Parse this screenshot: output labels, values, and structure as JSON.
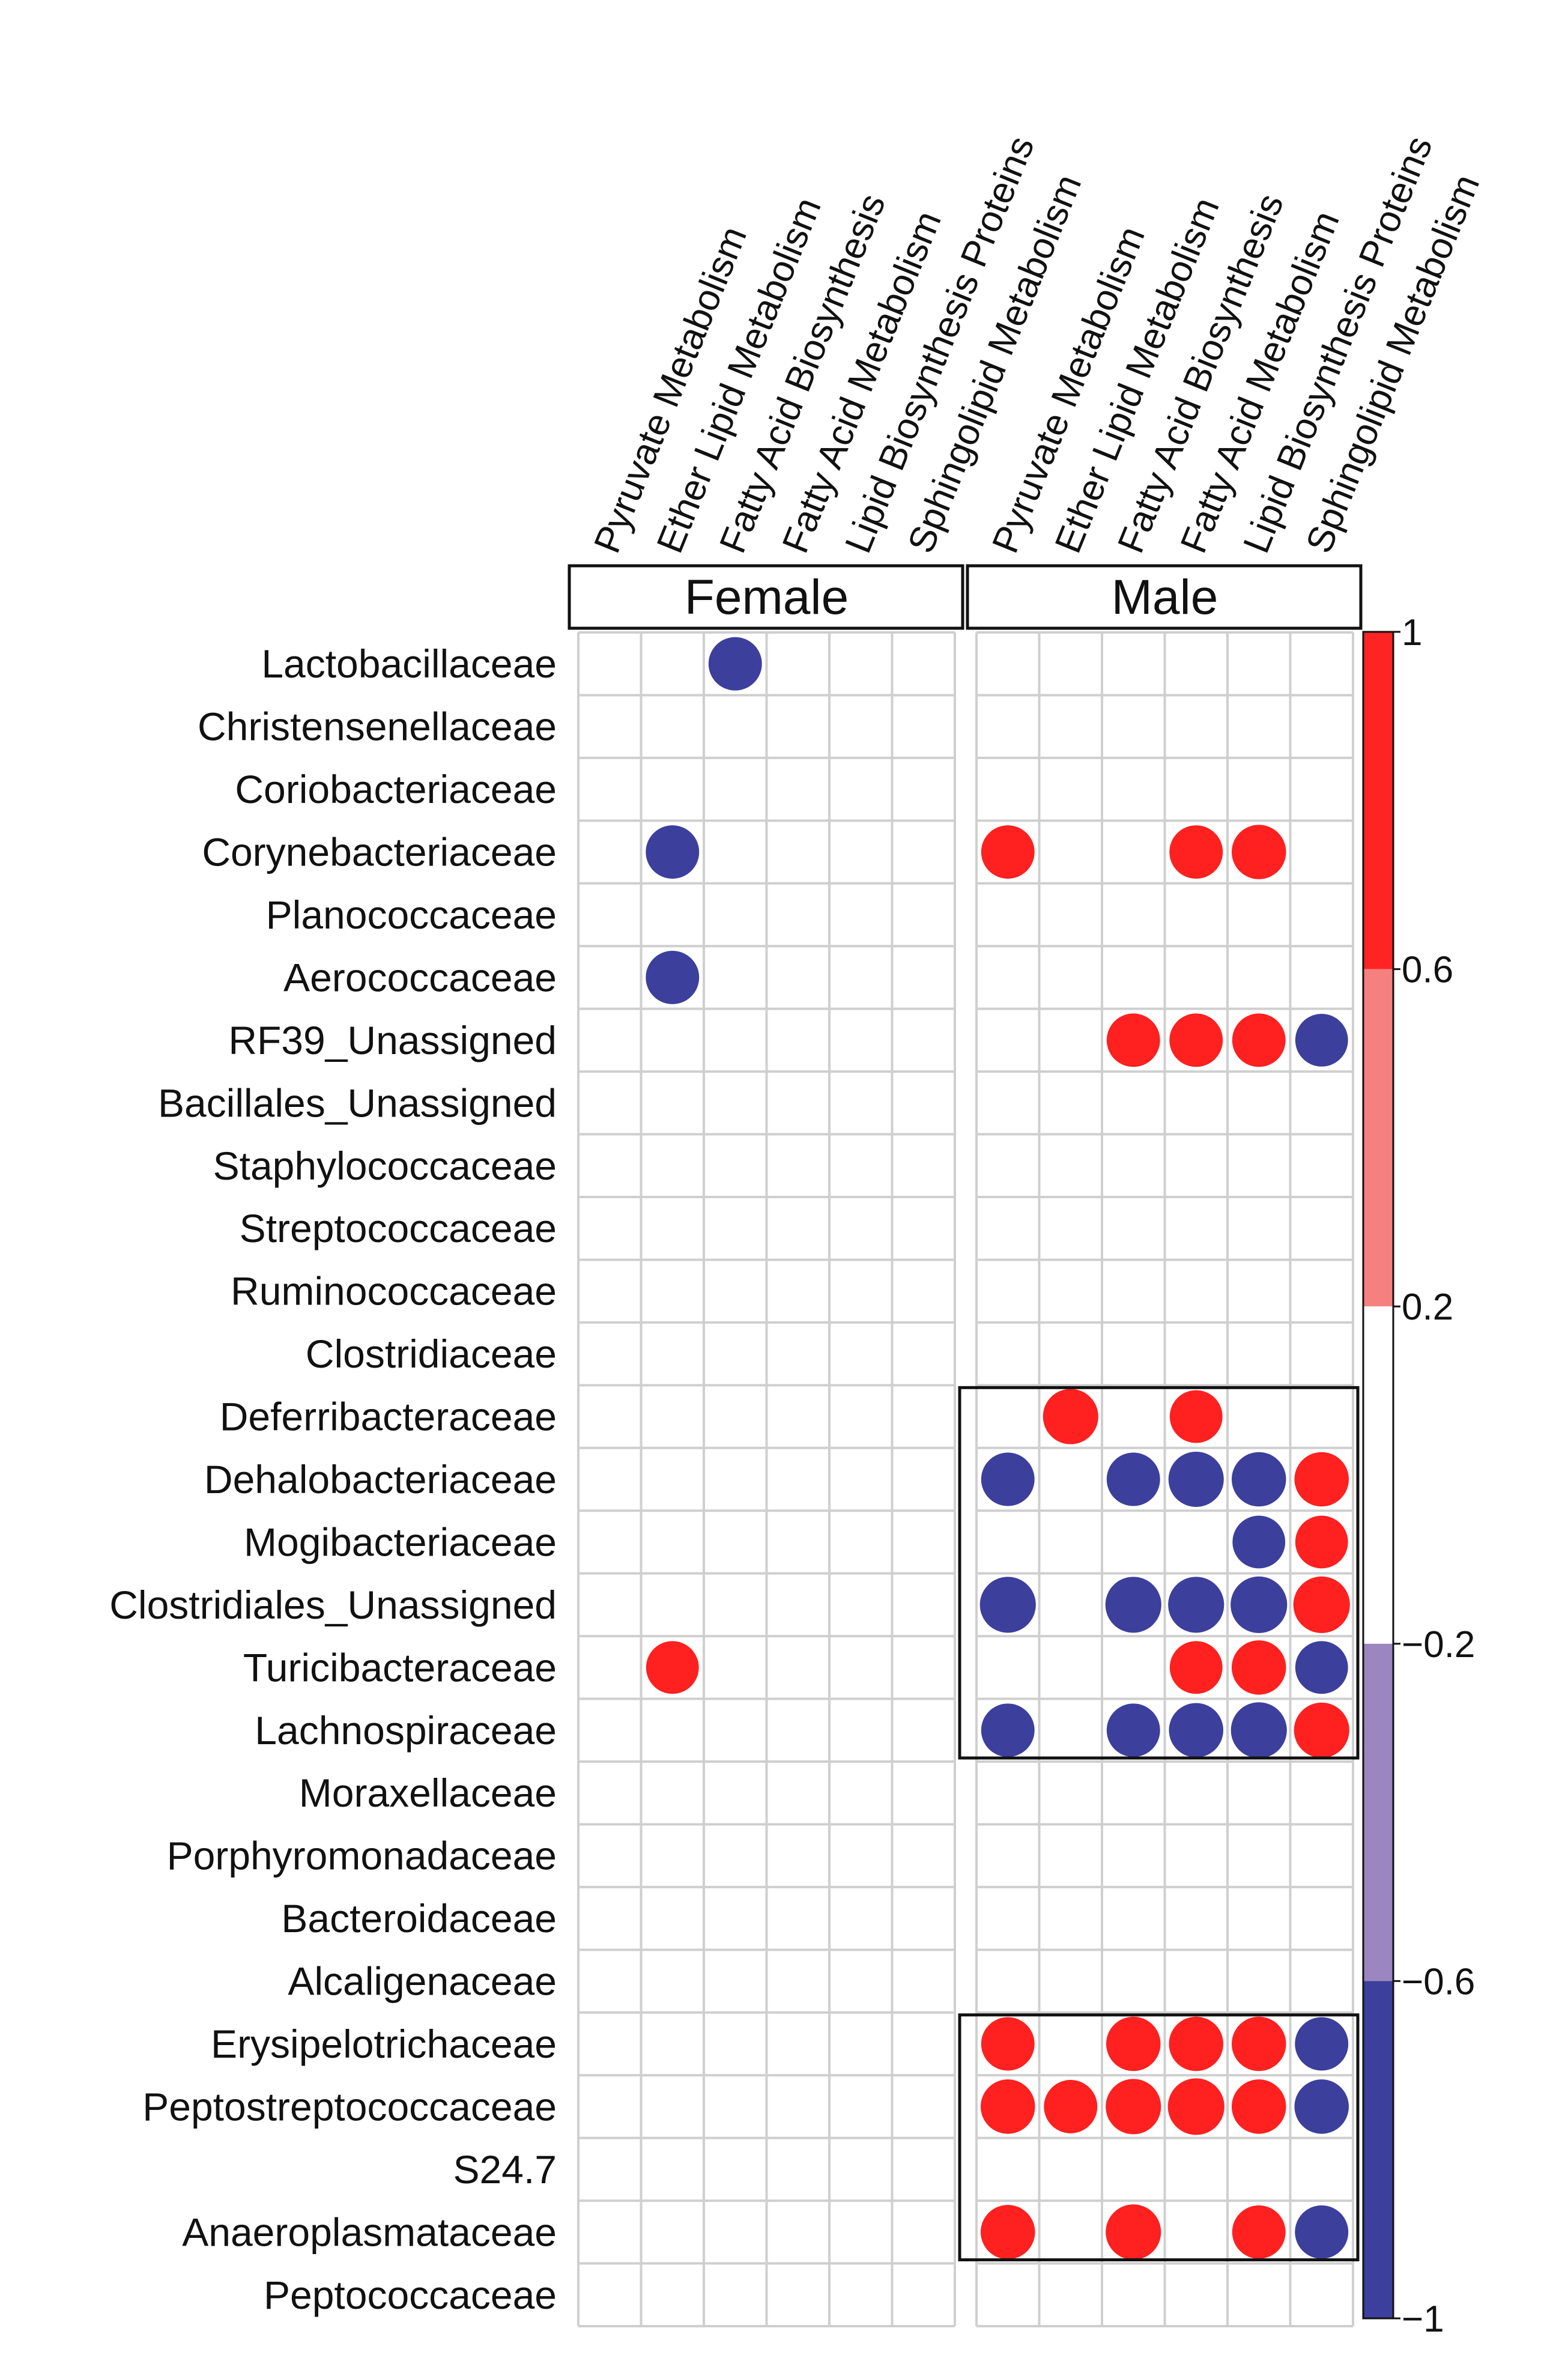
{
  "chart_data": {
    "type": "heatmap",
    "title": "",
    "panels": [
      {
        "name": "Female",
        "columns": [
          "Pyruvate Metabolism",
          "Ether Lipid Metabolism",
          "Fatty Acid Biosynthesis",
          "Fatty Acid Metabolism",
          "Lipid Biosynthesis Proteins",
          "Sphingolipid Metabolism"
        ]
      },
      {
        "name": "Male",
        "columns": [
          "Pyruvate Metabolism",
          "Ether Lipid Metabolism",
          "Fatty Acid Biosynthesis",
          "Fatty Acid Metabolism",
          "Lipid Biosynthesis Proteins",
          "Sphingolipid Metabolism"
        ]
      }
    ],
    "rows": [
      "Lactobacillaceae",
      "Christensenellaceae",
      "Coriobacteriaceae",
      "Corynebacteriaceae",
      "Planococcaceae",
      "Aerococcaceae",
      "RF39_Unassigned",
      "Bacillales_Unassigned",
      "Staphylococcaceae",
      "Streptococcaceae",
      "Ruminococcaceae",
      "Clostridiaceae",
      "Deferribacteraceae",
      "Dehalobacteriaceae",
      "Mogibacteriaceae",
      "Clostridiales_Unassigned",
      "Turicibacteraceae",
      "Lachnospiraceae",
      "Moraxellaceae",
      "Porphyromonadaceae",
      "Bacteroidaceae",
      "Alcaligenaceae",
      "Erysipelotrichaceae",
      "Peptostreptococcaceae",
      "S24.7",
      "Anaeroplasmataceae",
      "Peptococcaceae"
    ],
    "cells": [
      {
        "panel": 0,
        "row": 0,
        "col": 2,
        "value": -0.82
      },
      {
        "panel": 0,
        "row": 3,
        "col": 1,
        "value": -0.82
      },
      {
        "panel": 0,
        "row": 5,
        "col": 1,
        "value": -0.82
      },
      {
        "panel": 0,
        "row": 16,
        "col": 1,
        "value": 0.8
      },
      {
        "panel": 1,
        "row": 3,
        "col": 0,
        "value": 0.82
      },
      {
        "panel": 1,
        "row": 3,
        "col": 3,
        "value": 0.82
      },
      {
        "panel": 1,
        "row": 3,
        "col": 4,
        "value": 0.85
      },
      {
        "panel": 1,
        "row": 6,
        "col": 2,
        "value": 0.82
      },
      {
        "panel": 1,
        "row": 6,
        "col": 3,
        "value": 0.82
      },
      {
        "panel": 1,
        "row": 6,
        "col": 4,
        "value": 0.82
      },
      {
        "panel": 1,
        "row": 6,
        "col": 5,
        "value": -0.8
      },
      {
        "panel": 1,
        "row": 12,
        "col": 1,
        "value": 0.88
      },
      {
        "panel": 1,
        "row": 12,
        "col": 3,
        "value": 0.8
      },
      {
        "panel": 1,
        "row": 13,
        "col": 0,
        "value": -0.82
      },
      {
        "panel": 1,
        "row": 13,
        "col": 2,
        "value": -0.82
      },
      {
        "panel": 1,
        "row": 13,
        "col": 3,
        "value": -0.88
      },
      {
        "panel": 1,
        "row": 13,
        "col": 4,
        "value": -0.85
      },
      {
        "panel": 1,
        "row": 13,
        "col": 5,
        "value": 0.85
      },
      {
        "panel": 1,
        "row": 14,
        "col": 4,
        "value": -0.8
      },
      {
        "panel": 1,
        "row": 14,
        "col": 5,
        "value": 0.8
      },
      {
        "panel": 1,
        "row": 15,
        "col": 0,
        "value": -0.9
      },
      {
        "panel": 1,
        "row": 15,
        "col": 2,
        "value": -0.9
      },
      {
        "panel": 1,
        "row": 15,
        "col": 3,
        "value": -0.9
      },
      {
        "panel": 1,
        "row": 15,
        "col": 4,
        "value": -0.92
      },
      {
        "panel": 1,
        "row": 15,
        "col": 5,
        "value": 0.92
      },
      {
        "panel": 1,
        "row": 16,
        "col": 3,
        "value": 0.8
      },
      {
        "panel": 1,
        "row": 16,
        "col": 4,
        "value": 0.85
      },
      {
        "panel": 1,
        "row": 16,
        "col": 5,
        "value": -0.8
      },
      {
        "panel": 1,
        "row": 17,
        "col": 0,
        "value": -0.82
      },
      {
        "panel": 1,
        "row": 17,
        "col": 2,
        "value": -0.82
      },
      {
        "panel": 1,
        "row": 17,
        "col": 3,
        "value": -0.85
      },
      {
        "panel": 1,
        "row": 17,
        "col": 4,
        "value": -0.9
      },
      {
        "panel": 1,
        "row": 17,
        "col": 5,
        "value": 0.88
      },
      {
        "panel": 1,
        "row": 22,
        "col": 0,
        "value": 0.82
      },
      {
        "panel": 1,
        "row": 22,
        "col": 2,
        "value": 0.85
      },
      {
        "panel": 1,
        "row": 22,
        "col": 3,
        "value": 0.85
      },
      {
        "panel": 1,
        "row": 22,
        "col": 4,
        "value": 0.85
      },
      {
        "panel": 1,
        "row": 22,
        "col": 5,
        "value": -0.82
      },
      {
        "panel": 1,
        "row": 23,
        "col": 0,
        "value": 0.85
      },
      {
        "panel": 1,
        "row": 23,
        "col": 1,
        "value": 0.82
      },
      {
        "panel": 1,
        "row": 23,
        "col": 2,
        "value": 0.88
      },
      {
        "panel": 1,
        "row": 23,
        "col": 3,
        "value": 0.92
      },
      {
        "panel": 1,
        "row": 23,
        "col": 4,
        "value": 0.85
      },
      {
        "panel": 1,
        "row": 23,
        "col": 5,
        "value": -0.85
      },
      {
        "panel": 1,
        "row": 25,
        "col": 0,
        "value": 0.85
      },
      {
        "panel": 1,
        "row": 25,
        "col": 2,
        "value": 0.88
      },
      {
        "panel": 1,
        "row": 25,
        "col": 4,
        "value": 0.82
      },
      {
        "panel": 1,
        "row": 25,
        "col": 5,
        "value": -0.82
      }
    ],
    "highlight_boxes": [
      {
        "panel": 1,
        "row_start": 12,
        "row_end": 17
      },
      {
        "panel": 1,
        "row_start": 22,
        "row_end": 25
      }
    ],
    "colorbar": {
      "range": [
        -1,
        1
      ],
      "ticks": [
        "1",
        "0.6",
        "0.2",
        "−0.2",
        "−0.6",
        "−1"
      ],
      "tick_values": [
        1,
        0.6,
        0.2,
        -0.2,
        -0.6,
        -1
      ],
      "bands": [
        {
          "from": 0.6,
          "to": 1,
          "color": "#ff2424"
        },
        {
          "from": 0.2,
          "to": 0.6,
          "color": "#f68080"
        },
        {
          "from": -0.2,
          "to": 0.2,
          "color": "#ffffff"
        },
        {
          "from": -0.6,
          "to": -0.2,
          "color": "#9b86c0"
        },
        {
          "from": -1,
          "to": -0.6,
          "color": "#3c3f9c"
        }
      ]
    },
    "colors": {
      "positive": "#ff2020",
      "negative": "#3c3f9c",
      "grid": "#cfcfcf"
    }
  }
}
